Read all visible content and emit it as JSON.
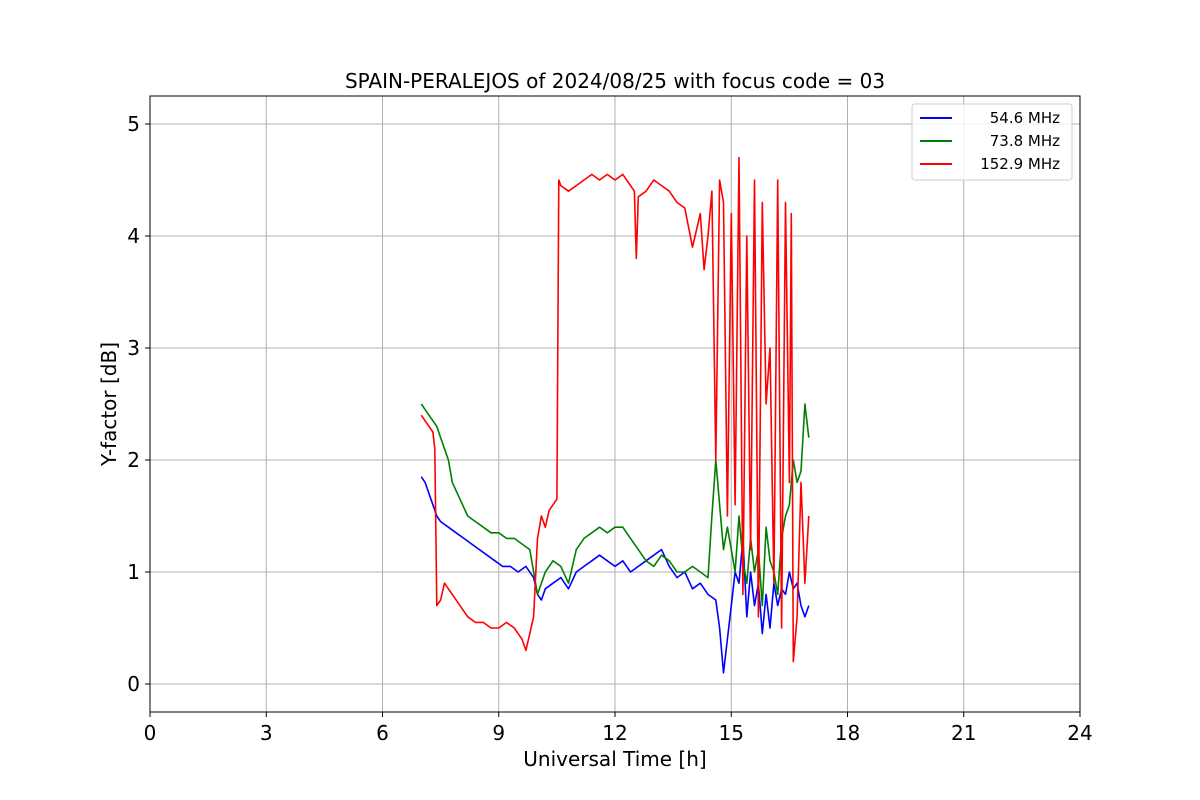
{
  "chart_data": {
    "type": "line",
    "title": "SPAIN-PERALEJOS of 2024/08/25 with focus code = 03",
    "xlabel": "Universal Time [h]",
    "ylabel": "Y-factor [dB]",
    "xlim": [
      0,
      24
    ],
    "ylim": [
      -0.25,
      5.25
    ],
    "xticks": [
      0,
      3,
      6,
      9,
      12,
      15,
      18,
      21,
      24
    ],
    "yticks": [
      0,
      1,
      2,
      3,
      4,
      5
    ],
    "grid": true,
    "legend_position": "top-right",
    "series": [
      {
        "name": "54.6 MHz",
        "color": "#0000ff",
        "x": [
          7.0,
          7.1,
          7.2,
          7.3,
          7.4,
          7.5,
          7.7,
          7.9,
          8.1,
          8.3,
          8.5,
          8.7,
          8.9,
          9.1,
          9.3,
          9.5,
          9.7,
          9.9,
          10.0,
          10.1,
          10.2,
          10.4,
          10.6,
          10.8,
          11.0,
          11.2,
          11.4,
          11.6,
          11.8,
          12.0,
          12.2,
          12.4,
          12.6,
          12.8,
          13.0,
          13.2,
          13.4,
          13.6,
          13.8,
          14.0,
          14.2,
          14.4,
          14.6,
          14.7,
          14.8,
          14.9,
          15.0,
          15.1,
          15.2,
          15.3,
          15.4,
          15.5,
          15.6,
          15.7,
          15.8,
          15.9,
          16.0,
          16.1,
          16.2,
          16.3,
          16.4,
          16.5,
          16.6,
          16.7,
          16.8,
          16.9,
          17.0
        ],
        "y": [
          1.85,
          1.8,
          1.7,
          1.6,
          1.5,
          1.45,
          1.4,
          1.35,
          1.3,
          1.25,
          1.2,
          1.15,
          1.1,
          1.05,
          1.05,
          1.0,
          1.05,
          0.95,
          0.8,
          0.75,
          0.85,
          0.9,
          0.95,
          0.85,
          1.0,
          1.05,
          1.1,
          1.15,
          1.1,
          1.05,
          1.1,
          1.0,
          1.05,
          1.1,
          1.15,
          1.2,
          1.05,
          0.95,
          1.0,
          0.85,
          0.9,
          0.8,
          0.75,
          0.5,
          0.1,
          0.4,
          0.7,
          1.0,
          0.9,
          1.3,
          0.6,
          1.0,
          0.7,
          0.9,
          0.45,
          0.8,
          0.5,
          0.9,
          0.7,
          0.85,
          0.8,
          1.0,
          0.85,
          0.9,
          0.7,
          0.6,
          0.7
        ]
      },
      {
        "name": "73.8 MHz",
        "color": "#008000",
        "x": [
          7.0,
          7.1,
          7.2,
          7.3,
          7.4,
          7.5,
          7.6,
          7.7,
          7.8,
          8.0,
          8.2,
          8.4,
          8.6,
          8.8,
          9.0,
          9.2,
          9.4,
          9.6,
          9.8,
          10.0,
          10.1,
          10.2,
          10.4,
          10.6,
          10.8,
          11.0,
          11.2,
          11.4,
          11.6,
          11.8,
          12.0,
          12.2,
          12.4,
          12.6,
          12.8,
          13.0,
          13.2,
          13.4,
          13.6,
          13.8,
          14.0,
          14.2,
          14.4,
          14.5,
          14.6,
          14.7,
          14.8,
          14.9,
          15.0,
          15.1,
          15.2,
          15.3,
          15.4,
          15.5,
          15.6,
          15.7,
          15.8,
          15.9,
          16.0,
          16.1,
          16.2,
          16.3,
          16.4,
          16.5,
          16.6,
          16.7,
          16.8,
          16.9,
          17.0
        ],
        "y": [
          2.5,
          2.45,
          2.4,
          2.35,
          2.3,
          2.2,
          2.1,
          2.0,
          1.8,
          1.65,
          1.5,
          1.45,
          1.4,
          1.35,
          1.35,
          1.3,
          1.3,
          1.25,
          1.2,
          0.8,
          0.9,
          1.0,
          1.1,
          1.05,
          0.9,
          1.2,
          1.3,
          1.35,
          1.4,
          1.35,
          1.4,
          1.4,
          1.3,
          1.2,
          1.1,
          1.05,
          1.15,
          1.1,
          1.0,
          1.0,
          1.05,
          1.0,
          0.95,
          1.5,
          2.0,
          1.6,
          1.2,
          1.4,
          1.2,
          1.0,
          1.5,
          1.1,
          0.9,
          1.3,
          1.0,
          1.2,
          0.7,
          1.4,
          1.1,
          1.0,
          0.8,
          1.3,
          1.5,
          1.6,
          2.0,
          1.8,
          1.9,
          2.5,
          2.2
        ]
      },
      {
        "name": "152.9 MHz",
        "color": "#ff0000",
        "x": [
          7.0,
          7.1,
          7.2,
          7.3,
          7.35,
          7.4,
          7.5,
          7.6,
          7.7,
          7.8,
          8.0,
          8.2,
          8.4,
          8.6,
          8.8,
          9.0,
          9.2,
          9.4,
          9.6,
          9.7,
          9.8,
          9.9,
          10.0,
          10.1,
          10.2,
          10.3,
          10.4,
          10.5,
          10.55,
          10.6,
          10.8,
          11.0,
          11.2,
          11.4,
          11.6,
          11.8,
          12.0,
          12.2,
          12.4,
          12.5,
          12.55,
          12.6,
          12.8,
          13.0,
          13.2,
          13.4,
          13.6,
          13.8,
          14.0,
          14.2,
          14.3,
          14.4,
          14.5,
          14.6,
          14.7,
          14.8,
          14.9,
          15.0,
          15.1,
          15.2,
          15.3,
          15.4,
          15.5,
          15.6,
          15.7,
          15.8,
          15.9,
          16.0,
          16.1,
          16.2,
          16.3,
          16.4,
          16.5,
          16.55,
          16.6,
          16.7,
          16.8,
          16.9,
          17.0
        ],
        "y": [
          2.4,
          2.35,
          2.3,
          2.25,
          2.1,
          0.7,
          0.75,
          0.9,
          0.85,
          0.8,
          0.7,
          0.6,
          0.55,
          0.55,
          0.5,
          0.5,
          0.55,
          0.5,
          0.4,
          0.3,
          0.45,
          0.6,
          1.3,
          1.5,
          1.4,
          1.55,
          1.6,
          1.65,
          4.5,
          4.45,
          4.4,
          4.45,
          4.5,
          4.55,
          4.5,
          4.55,
          4.5,
          4.55,
          4.45,
          4.4,
          3.8,
          4.35,
          4.4,
          4.5,
          4.45,
          4.4,
          4.3,
          4.25,
          3.9,
          4.2,
          3.7,
          4.0,
          4.4,
          2.0,
          4.5,
          4.3,
          1.5,
          4.2,
          1.6,
          4.7,
          0.8,
          4.0,
          1.2,
          4.5,
          0.6,
          4.3,
          2.5,
          3.0,
          0.9,
          4.5,
          0.5,
          4.3,
          1.8,
          4.2,
          0.2,
          0.6,
          1.8,
          0.9,
          1.5
        ]
      }
    ]
  }
}
